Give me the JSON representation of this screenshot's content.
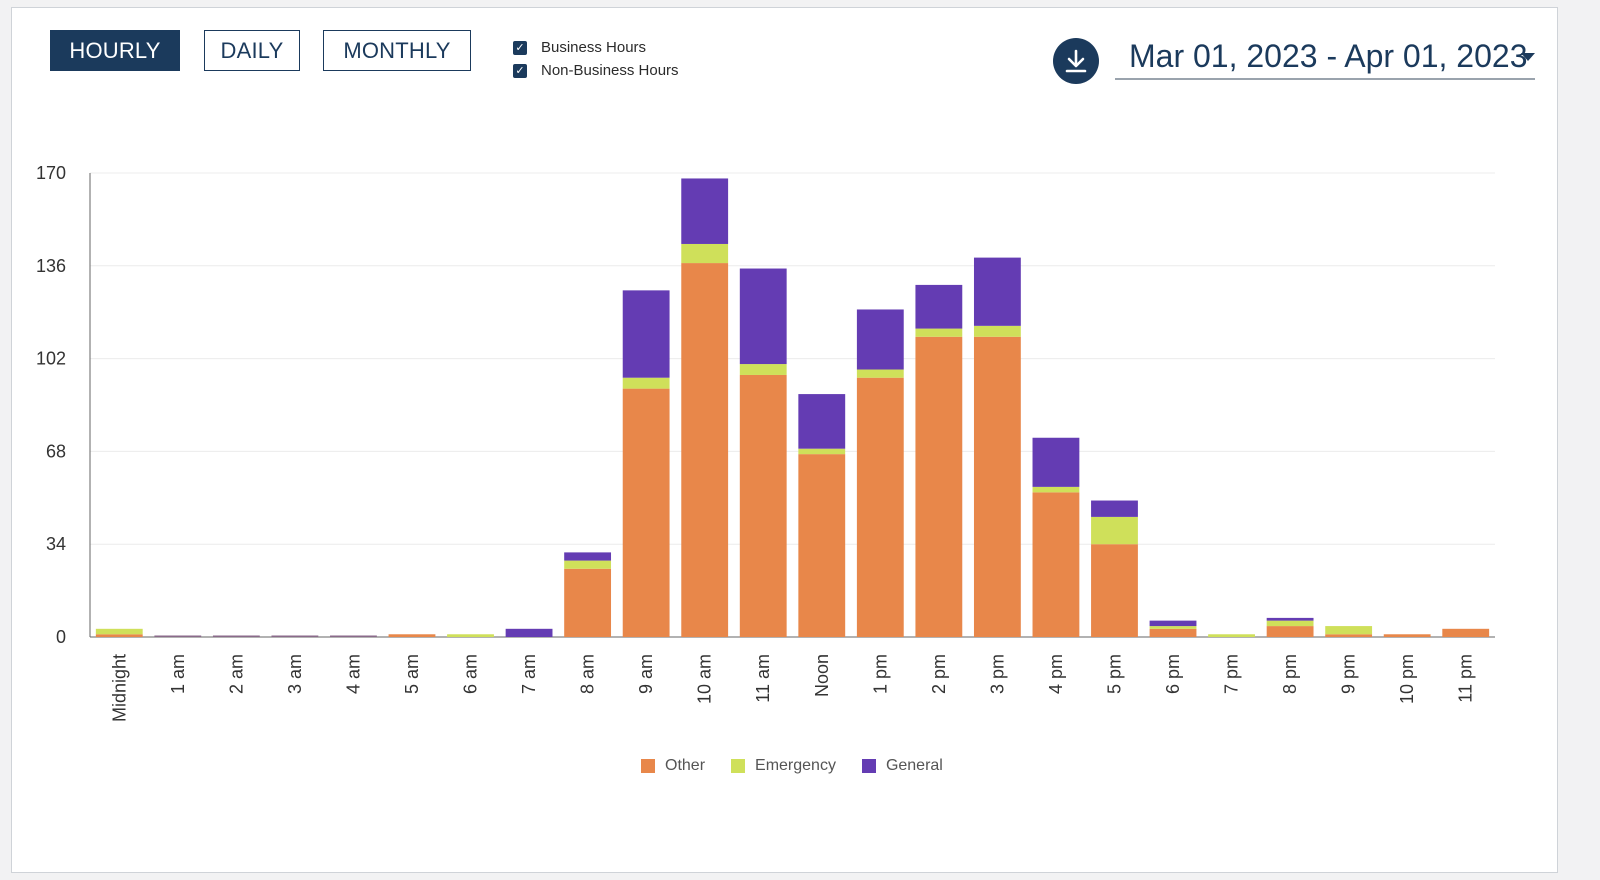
{
  "controls": {
    "views": [
      {
        "label": "HOURLY",
        "active": true
      },
      {
        "label": "DAILY",
        "active": false
      },
      {
        "label": "MONTHLY",
        "active": false
      }
    ],
    "filters": [
      {
        "label": "Business Hours",
        "checked": true
      },
      {
        "label": "Non-Business Hours",
        "checked": true
      }
    ],
    "download_icon": "download-icon",
    "date_range": "Mar 01, 2023 - Apr 01, 2023"
  },
  "colors": {
    "primary": "#1b3a5c",
    "Other": "#e8874a",
    "Emergency": "#cfe05a",
    "General": "#643cb3"
  },
  "chart_data": {
    "type": "bar",
    "stacked": true,
    "categories": [
      "Midnight",
      "1 am",
      "2 am",
      "3 am",
      "4 am",
      "5 am",
      "6 am",
      "7 am",
      "8 am",
      "9 am",
      "10 am",
      "11 am",
      "Noon",
      "1 pm",
      "2 pm",
      "3 pm",
      "4 pm",
      "5 pm",
      "6 pm",
      "7 pm",
      "8 pm",
      "9 pm",
      "10 pm",
      "11 pm"
    ],
    "series": [
      {
        "name": "Other",
        "values": [
          1,
          0,
          0,
          0,
          0,
          1,
          0,
          0,
          25,
          91,
          137,
          96,
          67,
          95,
          110,
          110,
          53,
          34,
          3,
          0,
          4,
          1,
          1,
          3
        ]
      },
      {
        "name": "Emergency",
        "values": [
          2,
          0,
          0,
          0,
          0,
          0,
          1,
          0,
          3,
          4,
          7,
          4,
          2,
          3,
          3,
          4,
          2,
          10,
          1,
          1,
          2,
          3,
          0,
          0
        ]
      },
      {
        "name": "General",
        "values": [
          0,
          0,
          0,
          0,
          0,
          0,
          0,
          3,
          3,
          32,
          24,
          35,
          20,
          22,
          16,
          25,
          18,
          6,
          2,
          0,
          1,
          0,
          0,
          0
        ]
      }
    ],
    "yticks": [
      0,
      34,
      68,
      102,
      136,
      170
    ],
    "ylim": [
      0,
      170
    ],
    "legend": [
      "Other",
      "Emergency",
      "General"
    ],
    "legend_position": "bottom"
  }
}
